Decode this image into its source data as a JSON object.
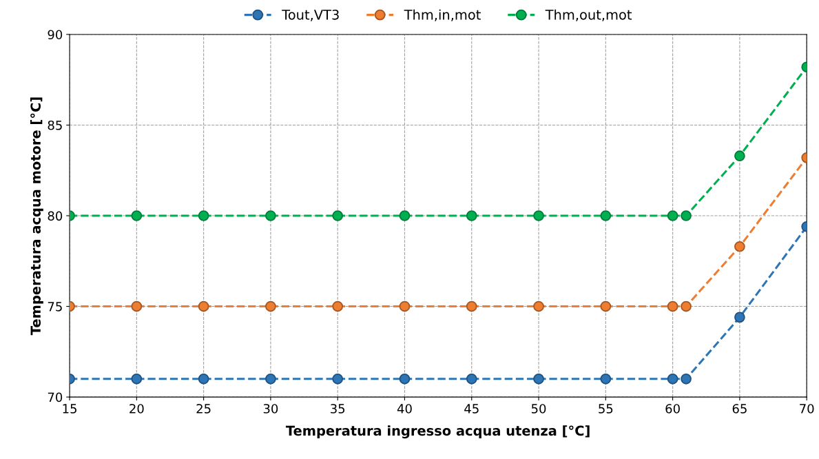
{
  "chart_data": {
    "type": "line",
    "xlabel": "Temperatura ingresso acqua utenza [°C]",
    "ylabel": "Temperatura acqua motore [°C]",
    "x": [
      15,
      20,
      25,
      30,
      35,
      40,
      45,
      50,
      55,
      60,
      61,
      65,
      70
    ],
    "series": [
      {
        "name": "Tout,VT3",
        "color": "#2e75b6",
        "values": [
          71,
          71,
          71,
          71,
          71,
          71,
          71,
          71,
          71,
          71,
          71,
          74.4,
          79.4
        ]
      },
      {
        "name": "Thm,in,mot",
        "color": "#ed7d31",
        "values": [
          75,
          75,
          75,
          75,
          75,
          75,
          75,
          75,
          75,
          75,
          75,
          78.3,
          83.2
        ]
      },
      {
        "name": "Thm,out,mot",
        "color": "#00b050",
        "values": [
          80,
          80,
          80,
          80,
          80,
          80,
          80,
          80,
          80,
          80,
          80,
          83.3,
          88.2
        ]
      }
    ],
    "xlim": [
      15,
      70
    ],
    "xticks": [
      15,
      20,
      25,
      30,
      35,
      40,
      45,
      50,
      55,
      60,
      65,
      70
    ],
    "ylim": [
      70,
      90
    ],
    "yticks": [
      70,
      75,
      80,
      85,
      90
    ],
    "grid": true,
    "legend": "top",
    "marker": "circle",
    "line_style": "dashed"
  }
}
